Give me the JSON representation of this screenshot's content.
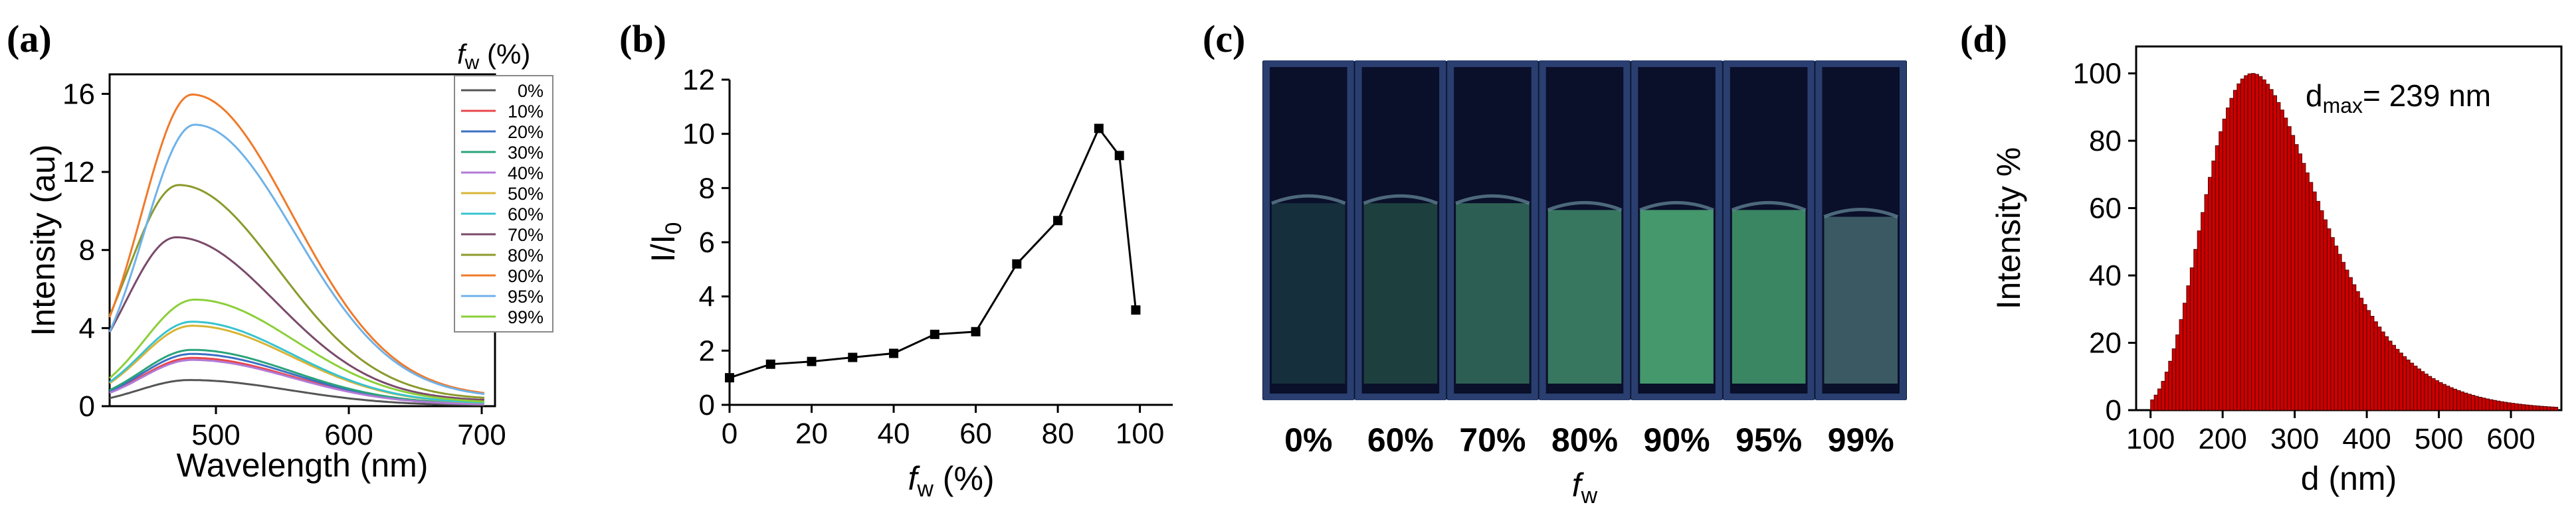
{
  "panels": {
    "a": "(a)",
    "b": "(b)",
    "c": "(c)",
    "d": "(d)"
  },
  "legend_title_f": "f",
  "legend_title_sub": "w",
  "legend_title_rest": " (%)",
  "colors": {
    "series": [
      "#555555",
      "#e8464a",
      "#3b6fc4",
      "#2aa37a",
      "#b27ad6",
      "#d9b434",
      "#37c3cf",
      "#7a4a6a",
      "#8b9a2a",
      "#f07a2a",
      "#6fb2e8",
      "#8ccf3a"
    ],
    "bar_fill": "#cc0000",
    "bar_edge": "#550000",
    "photo_bg": "#0d1838",
    "photo_glass": "#2a3f70"
  },
  "chart_data": [
    {
      "id": "a",
      "type": "line",
      "xlabel": "Wavelength (nm)",
      "ylabel": "Intensity (au)",
      "xlim": [
        420,
        710
      ],
      "ylim": [
        0,
        17
      ],
      "xticks": [
        500,
        600,
        700
      ],
      "yticks": [
        0,
        4,
        8,
        12,
        16
      ],
      "series": [
        {
          "name": "0%",
          "peak": 1.3,
          "peak_x": 480,
          "color_idx": 0
        },
        {
          "name": "10%",
          "peak": 2.4,
          "peak_x": 482,
          "color_idx": 1
        },
        {
          "name": "20%",
          "peak": 2.6,
          "peak_x": 482,
          "color_idx": 2
        },
        {
          "name": "30%",
          "peak": 2.8,
          "peak_x": 482,
          "color_idx": 3
        },
        {
          "name": "40%",
          "peak": 2.3,
          "peak_x": 482,
          "color_idx": 4
        },
        {
          "name": "50%",
          "peak": 4.0,
          "peak_x": 482,
          "color_idx": 5
        },
        {
          "name": "60%",
          "peak": 4.2,
          "peak_x": 482,
          "color_idx": 6
        },
        {
          "name": "70%",
          "peak": 8.4,
          "peak_x": 470,
          "color_idx": 7
        },
        {
          "name": "80%",
          "peak": 11.0,
          "peak_x": 472,
          "color_idx": 8
        },
        {
          "name": "90%",
          "peak": 15.5,
          "peak_x": 482,
          "color_idx": 9
        },
        {
          "name": "95%",
          "peak": 14.0,
          "peak_x": 484,
          "color_idx": 10
        },
        {
          "name": "99%",
          "peak": 5.3,
          "peak_x": 484,
          "color_idx": 11
        }
      ]
    },
    {
      "id": "b",
      "type": "line",
      "xlabel": "f",
      "xlabel_sub": "w",
      "xlabel_rest": " (%)",
      "ylabel": "I/I",
      "ylabel_sub": "0",
      "xlim": [
        0,
        108
      ],
      "ylim": [
        0,
        12
      ],
      "xticks": [
        0,
        20,
        40,
        60,
        80,
        100
      ],
      "yticks": [
        0,
        2,
        4,
        6,
        8,
        10,
        12
      ],
      "x": [
        0,
        10,
        20,
        30,
        40,
        50,
        60,
        70,
        80,
        90,
        95,
        99
      ],
      "y": [
        1.0,
        1.5,
        1.6,
        1.75,
        1.9,
        2.6,
        2.7,
        5.2,
        6.8,
        10.2,
        9.2,
        3.5
      ]
    },
    {
      "id": "d",
      "type": "bar",
      "xlabel": "d (nm)",
      "ylabel": "Intensity %",
      "xlim": [
        80,
        670
      ],
      "ylim": [
        0,
        108
      ],
      "xticks": [
        100,
        200,
        300,
        400,
        500,
        600
      ],
      "yticks": [
        0,
        20,
        40,
        60,
        80,
        100
      ],
      "annotation": "d",
      "annotation_sub": "max",
      "annotation_rest": "= 239 nm",
      "peak_d": 239,
      "bin_width": 5,
      "range": [
        100,
        660
      ]
    }
  ],
  "photo": {
    "xlabel": "f",
    "xlabel_sub": "w",
    "vials": [
      {
        "label": "0%",
        "glow": "#1f4a4a",
        "glow_opacity": 0.55,
        "level": 0.42
      },
      {
        "label": "60%",
        "glow": "#285a4a",
        "glow_opacity": 0.65,
        "level": 0.42
      },
      {
        "label": "70%",
        "glow": "#3a7a62",
        "glow_opacity": 0.75,
        "level": 0.42
      },
      {
        "label": "80%",
        "glow": "#3f8a6a",
        "glow_opacity": 0.85,
        "level": 0.44
      },
      {
        "label": "90%",
        "glow": "#48a070",
        "glow_opacity": 0.95,
        "level": 0.44
      },
      {
        "label": "95%",
        "glow": "#3f9268",
        "glow_opacity": 0.9,
        "level": 0.44
      },
      {
        "label": "99%",
        "glow": "#5a8a8a",
        "glow_opacity": 0.6,
        "level": 0.46
      }
    ]
  }
}
